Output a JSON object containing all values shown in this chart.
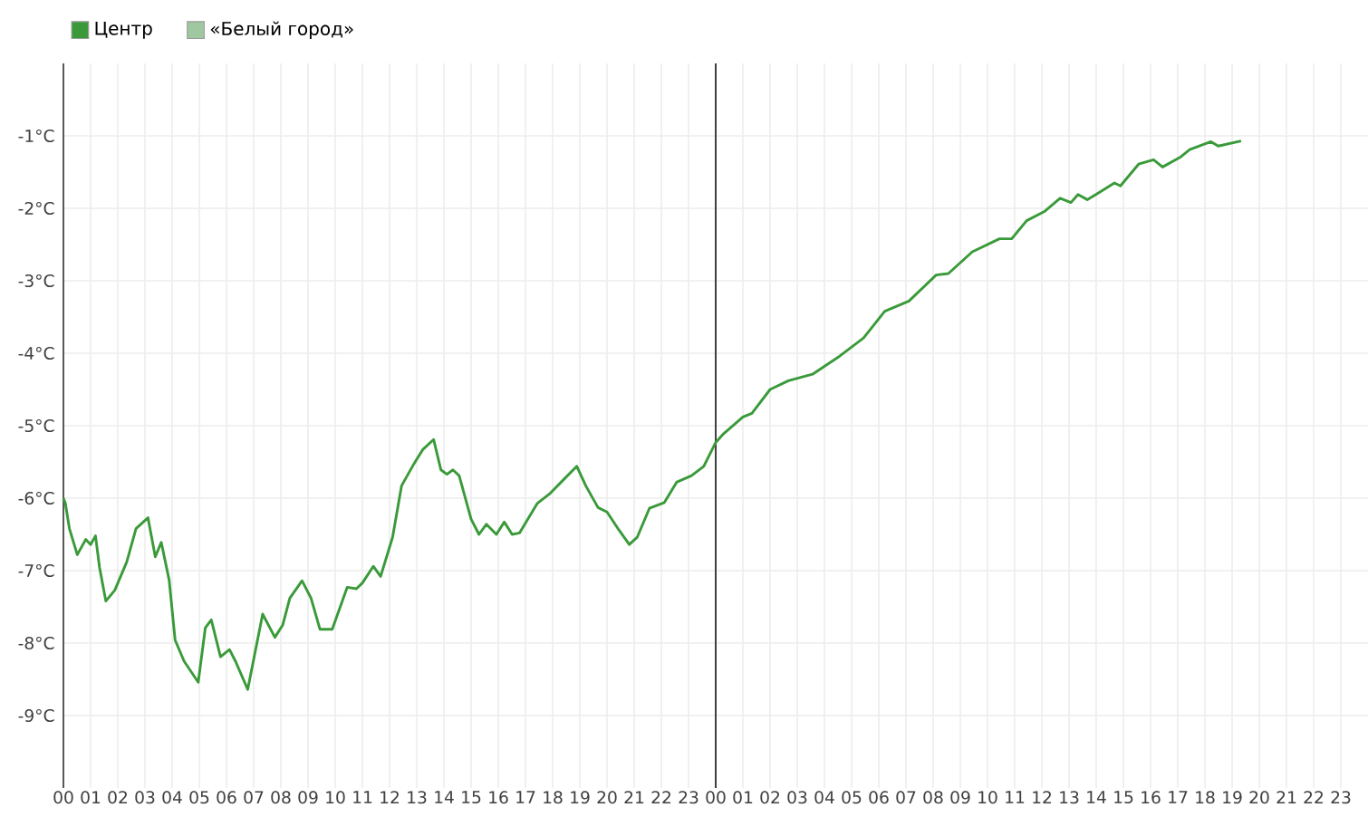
{
  "chart_data": {
    "type": "line",
    "x": [
      0,
      0.07,
      0.22,
      0.51,
      0.82,
      1.0,
      1.18,
      1.33,
      1.56,
      1.89,
      2.33,
      2.67,
      3.11,
      3.38,
      3.6,
      3.89,
      4.11,
      4.44,
      4.96,
      5.22,
      5.44,
      5.78,
      6.11,
      6.33,
      6.78,
      7.33,
      7.78,
      8.07,
      8.33,
      8.78,
      9.11,
      9.44,
      9.89,
      10.44,
      10.78,
      11.0,
      11.4,
      11.67,
      12.11,
      12.44,
      12.89,
      13.22,
      13.62,
      13.89,
      14.11,
      14.33,
      14.56,
      15.0,
      15.29,
      15.56,
      15.93,
      16.22,
      16.51,
      16.78,
      17.44,
      17.89,
      18.44,
      18.89,
      19.22,
      19.67,
      20.0,
      20.44,
      20.82,
      21.11,
      21.56,
      22.11,
      22.56,
      23.11,
      23.56,
      24.0,
      24.29,
      25.0,
      25.33,
      26.0,
      26.67,
      27.56,
      28.56,
      29.44,
      30.22,
      31.11,
      32.11,
      32.56,
      33.44,
      34.44,
      34.89,
      35.44,
      36.11,
      36.67,
      37.07,
      37.33,
      37.67,
      38.11,
      38.67,
      38.89,
      39.56,
      40.11,
      40.44,
      41.11,
      41.44,
      42.22,
      42.49,
      43.33
    ],
    "series": [
      {
        "name": "Центр",
        "color": "#3a9a3a",
        "values": [
          -6.0,
          -6.07,
          -6.42,
          -6.78,
          -6.57,
          -6.64,
          -6.52,
          -6.96,
          -7.42,
          -7.27,
          -6.88,
          -6.42,
          -6.27,
          -6.81,
          -6.61,
          -7.13,
          -7.96,
          -8.25,
          -8.54,
          -7.79,
          -7.68,
          -8.19,
          -8.09,
          -8.25,
          -8.64,
          -7.6,
          -7.92,
          -7.75,
          -7.38,
          -7.14,
          -7.38,
          -7.81,
          -7.81,
          -7.23,
          -7.25,
          -7.17,
          -6.94,
          -7.08,
          -6.54,
          -5.83,
          -5.53,
          -5.33,
          -5.19,
          -5.61,
          -5.67,
          -5.61,
          -5.69,
          -6.29,
          -6.5,
          -6.36,
          -6.5,
          -6.33,
          -6.5,
          -6.48,
          -6.07,
          -5.94,
          -5.73,
          -5.56,
          -5.83,
          -6.13,
          -6.19,
          -6.44,
          -6.64,
          -6.54,
          -6.14,
          -6.06,
          -5.78,
          -5.69,
          -5.56,
          -5.23,
          -5.11,
          -4.88,
          -4.83,
          -4.5,
          -4.38,
          -4.29,
          -4.04,
          -3.79,
          -3.42,
          -3.28,
          -2.92,
          -2.9,
          -2.6,
          -2.42,
          -2.42,
          -2.17,
          -2.04,
          -1.86,
          -1.92,
          -1.81,
          -1.88,
          -1.78,
          -1.65,
          -1.69,
          -1.39,
          -1.33,
          -1.43,
          -1.29,
          -1.19,
          -1.08,
          -1.14,
          -1.07
        ]
      },
      {
        "name": "«Белый город»",
        "color": "#a0c8a0",
        "values": [
          null,
          null,
          null,
          null,
          null,
          null,
          null,
          null,
          null,
          null,
          null,
          null,
          null,
          null,
          null,
          null,
          null,
          null,
          null,
          null,
          null,
          null,
          null,
          null,
          null,
          null,
          null,
          null,
          null,
          null,
          null,
          null,
          null,
          null,
          null,
          null,
          null,
          null,
          null,
          null,
          null,
          null,
          null,
          null,
          null,
          null,
          null,
          null,
          null,
          null,
          null,
          null,
          null,
          null,
          null,
          null,
          null,
          null,
          null,
          null,
          null,
          null,
          null,
          null,
          null,
          null,
          null,
          null,
          null,
          null,
          null,
          null,
          null,
          null,
          null,
          null,
          null,
          null,
          null,
          null,
          null,
          null,
          null,
          null,
          null,
          null,
          null,
          null,
          null,
          null,
          null,
          null,
          null,
          null,
          null,
          null,
          null,
          null,
          null,
          null,
          null,
          null
        ]
      }
    ],
    "xlim": [
      0,
      48
    ],
    "xticks": [
      {
        "value": 0,
        "label": "00"
      },
      {
        "value": 1,
        "label": "01"
      },
      {
        "value": 2,
        "label": "02"
      },
      {
        "value": 3,
        "label": "03"
      },
      {
        "value": 4,
        "label": "04"
      },
      {
        "value": 5,
        "label": "05"
      },
      {
        "value": 6,
        "label": "06"
      },
      {
        "value": 7,
        "label": "07"
      },
      {
        "value": 8,
        "label": "08"
      },
      {
        "value": 9,
        "label": "09"
      },
      {
        "value": 10,
        "label": "10"
      },
      {
        "value": 11,
        "label": "11"
      },
      {
        "value": 12,
        "label": "12"
      },
      {
        "value": 13,
        "label": "13"
      },
      {
        "value": 14,
        "label": "14"
      },
      {
        "value": 15,
        "label": "15"
      },
      {
        "value": 16,
        "label": "16"
      },
      {
        "value": 17,
        "label": "17"
      },
      {
        "value": 18,
        "label": "18"
      },
      {
        "value": 19,
        "label": "19"
      },
      {
        "value": 20,
        "label": "20"
      },
      {
        "value": 21,
        "label": "21"
      },
      {
        "value": 22,
        "label": "22"
      },
      {
        "value": 23,
        "label": "23"
      },
      {
        "value": 24,
        "label": "00"
      },
      {
        "value": 25,
        "label": "01"
      },
      {
        "value": 26,
        "label": "02"
      },
      {
        "value": 27,
        "label": "03"
      },
      {
        "value": 28,
        "label": "04"
      },
      {
        "value": 29,
        "label": "05"
      },
      {
        "value": 30,
        "label": "06"
      },
      {
        "value": 31,
        "label": "07"
      },
      {
        "value": 32,
        "label": "08"
      },
      {
        "value": 33,
        "label": "09"
      },
      {
        "value": 34,
        "label": "10"
      },
      {
        "value": 35,
        "label": "11"
      },
      {
        "value": 36,
        "label": "12"
      },
      {
        "value": 37,
        "label": "13"
      },
      {
        "value": 38,
        "label": "14"
      },
      {
        "value": 39,
        "label": "15"
      },
      {
        "value": 40,
        "label": "16"
      },
      {
        "value": 41,
        "label": "17"
      },
      {
        "value": 42,
        "label": "18"
      },
      {
        "value": 43,
        "label": "19"
      },
      {
        "value": 44,
        "label": "20"
      },
      {
        "value": 45,
        "label": "21"
      },
      {
        "value": 46,
        "label": "22"
      },
      {
        "value": 47,
        "label": "23"
      }
    ],
    "ylim": [
      -10,
      0
    ],
    "yticks": [
      {
        "value": -9,
        "label": "-9°C"
      },
      {
        "value": -8,
        "label": "-8°C"
      },
      {
        "value": -7,
        "label": "-7°C"
      },
      {
        "value": -6,
        "label": "-6°C"
      },
      {
        "value": -5,
        "label": "-5°C"
      },
      {
        "value": -4,
        "label": "-4°C"
      },
      {
        "value": -3,
        "label": "-3°C"
      },
      {
        "value": -2,
        "label": "-2°C"
      },
      {
        "value": -1,
        "label": "-1°C"
      }
    ],
    "ref_lines": [
      {
        "axis": "x",
        "value": 24,
        "color": "#333333"
      }
    ],
    "grid": true,
    "legend": "top left",
    "marker": "none",
    "line_style": "solid"
  }
}
